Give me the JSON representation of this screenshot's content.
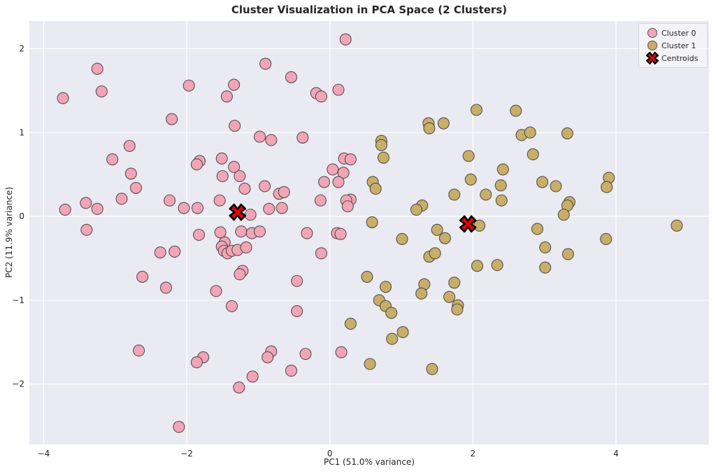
{
  "title": "Cluster Visualization in PCA Space (2 Clusters)",
  "axes": {
    "xlabel": "PC1 (51.0% variance)",
    "ylabel": "PC2 (11.9% variance)"
  },
  "legend": {
    "items": [
      {
        "label": "Cluster 0",
        "marker": "circle",
        "color": "#F2A5B6"
      },
      {
        "label": "Cluster 1",
        "marker": "circle",
        "color": "#C8AE68"
      },
      {
        "label": "Centroids",
        "marker": "X",
        "color": "#E8000B"
      }
    ]
  },
  "colors": {
    "plot_background": "#EAEAF2",
    "gridline": "#FFFFFF",
    "cluster0": "#F2A5B6",
    "cluster1": "#C8AE68",
    "centroid": "#E8000B",
    "marker_edge": "#3C3C3C",
    "text": "#262626"
  },
  "chart_data": {
    "type": "scatter",
    "title": "Cluster Visualization in PCA Space (2 Clusters)",
    "xlabel": "PC1 (51.0% variance)",
    "ylabel": "PC2 (11.9% variance)",
    "xlim": [
      -4.2,
      5.3
    ],
    "ylim": [
      -2.72,
      2.33
    ],
    "xticks": [
      -4,
      -2,
      0,
      2,
      4
    ],
    "yticks": [
      -2,
      -1,
      0,
      1,
      2
    ],
    "grid": true,
    "legend_position": "upper right",
    "series": [
      {
        "name": "Cluster 0",
        "marker": "circle",
        "color": "#F2A5B6",
        "points": [
          [
            -3.25,
            1.76
          ],
          [
            -3.73,
            1.41
          ],
          [
            -3.19,
            1.49
          ],
          [
            -2.21,
            1.16
          ],
          [
            -1.97,
            1.56
          ],
          [
            -1.34,
            1.57
          ],
          [
            -1.44,
            1.43
          ],
          [
            -1.33,
            1.08
          ],
          [
            -2.8,
            0.84
          ],
          [
            -3.04,
            0.68
          ],
          [
            -2.78,
            0.51
          ],
          [
            -2.71,
            0.34
          ],
          [
            -2.91,
            0.21
          ],
          [
            -3.7,
            0.08
          ],
          [
            -3.41,
            0.16
          ],
          [
            -3.25,
            0.09
          ],
          [
            -1.82,
            0.66
          ],
          [
            -1.86,
            0.62
          ],
          [
            -1.51,
            0.69
          ],
          [
            -1.34,
            0.59
          ],
          [
            -1.5,
            0.48
          ],
          [
            -1.26,
            0.48
          ],
          [
            -1.19,
            0.33
          ],
          [
            -1.54,
            0.19
          ],
          [
            -2.24,
            0.19
          ],
          [
            -2.04,
            0.1
          ],
          [
            -1.85,
            0.1
          ],
          [
            -3.4,
            -0.16
          ],
          [
            -1.11,
            0.02
          ],
          [
            0.22,
            2.11
          ],
          [
            -0.9,
            1.82
          ],
          [
            -0.54,
            1.66
          ],
          [
            -0.19,
            1.47
          ],
          [
            -0.12,
            1.43
          ],
          [
            0.12,
            1.51
          ],
          [
            -0.98,
            0.95
          ],
          [
            -0.82,
            0.91
          ],
          [
            -0.38,
            0.94
          ],
          [
            0.2,
            0.69
          ],
          [
            0.29,
            0.68
          ],
          [
            0.04,
            0.56
          ],
          [
            0.19,
            0.52
          ],
          [
            -0.08,
            0.41
          ],
          [
            0.12,
            0.41
          ],
          [
            -0.91,
            0.36
          ],
          [
            -0.71,
            0.27
          ],
          [
            -0.64,
            0.29
          ],
          [
            -0.13,
            0.19
          ],
          [
            -0.85,
            0.09
          ],
          [
            -0.67,
            0.1
          ],
          [
            0.29,
            0.2
          ],
          [
            0.23,
            0.19
          ],
          [
            0.25,
            0.12
          ],
          [
            -2.37,
            -0.43
          ],
          [
            -2.17,
            -0.42
          ],
          [
            -2.62,
            -0.72
          ],
          [
            -2.29,
            -0.85
          ],
          [
            -2.67,
            -1.6
          ],
          [
            -2.11,
            -2.51
          ],
          [
            -1.83,
            -0.22
          ],
          [
            -1.53,
            -0.19
          ],
          [
            -1.24,
            -0.18
          ],
          [
            -1.09,
            -0.2
          ],
          [
            -0.98,
            -0.18
          ],
          [
            -0.32,
            -0.2
          ],
          [
            0.1,
            -0.2
          ],
          [
            0.15,
            -0.21
          ],
          [
            -1.47,
            -0.31
          ],
          [
            -1.51,
            -0.36
          ],
          [
            -1.48,
            -0.41
          ],
          [
            -1.43,
            -0.44
          ],
          [
            -1.37,
            -0.41
          ],
          [
            -1.29,
            -0.4
          ],
          [
            -1.17,
            -0.37
          ],
          [
            -0.12,
            -0.44
          ],
          [
            -1.22,
            -0.65
          ],
          [
            -1.26,
            -0.69
          ],
          [
            -0.46,
            -0.77
          ],
          [
            -1.59,
            -0.89
          ],
          [
            -1.37,
            -1.07
          ],
          [
            -0.46,
            -1.13
          ],
          [
            -1.77,
            -1.68
          ],
          [
            -1.86,
            -1.74
          ],
          [
            -0.82,
            -1.61
          ],
          [
            -0.87,
            -1.68
          ],
          [
            -0.34,
            -1.64
          ],
          [
            0.16,
            -1.62
          ],
          [
            -0.54,
            -1.84
          ],
          [
            -1.08,
            -1.91
          ],
          [
            -1.27,
            -2.04
          ]
        ]
      },
      {
        "name": "Cluster 1",
        "marker": "circle",
        "color": "#C8AE68",
        "points": [
          [
            0.72,
            0.9
          ],
          [
            0.72,
            0.85
          ],
          [
            0.75,
            0.7
          ],
          [
            0.6,
            0.41
          ],
          [
            0.64,
            0.33
          ],
          [
            0.59,
            -0.07
          ],
          [
            2.05,
            1.27
          ],
          [
            1.59,
            1.11
          ],
          [
            1.38,
            1.11
          ],
          [
            1.39,
            1.05
          ],
          [
            2.6,
            1.26
          ],
          [
            2.68,
            0.97
          ],
          [
            2.8,
            1.0
          ],
          [
            3.32,
            0.99
          ],
          [
            2.84,
            0.74
          ],
          [
            1.94,
            0.72
          ],
          [
            2.42,
            0.56
          ],
          [
            1.97,
            0.44
          ],
          [
            2.39,
            0.37
          ],
          [
            2.97,
            0.41
          ],
          [
            3.16,
            0.36
          ],
          [
            1.74,
            0.26
          ],
          [
            2.18,
            0.26
          ],
          [
            2.4,
            0.19
          ],
          [
            1.29,
            0.13
          ],
          [
            1.21,
            0.08
          ],
          [
            3.35,
            0.17
          ],
          [
            3.32,
            0.13
          ],
          [
            3.27,
            0.02
          ],
          [
            2.09,
            -0.11
          ],
          [
            2.9,
            -0.15
          ],
          [
            3.9,
            0.46
          ],
          [
            3.87,
            0.35
          ],
          [
            4.85,
            -0.11
          ],
          [
            1.01,
            -0.27
          ],
          [
            1.61,
            -0.26
          ],
          [
            1.5,
            -0.16
          ],
          [
            1.39,
            -0.48
          ],
          [
            1.47,
            -0.44
          ],
          [
            2.06,
            -0.59
          ],
          [
            2.34,
            -0.58
          ],
          [
            0.52,
            -0.72
          ],
          [
            0.78,
            -0.84
          ],
          [
            1.32,
            -0.81
          ],
          [
            1.28,
            -0.92
          ],
          [
            1.74,
            -0.79
          ],
          [
            1.67,
            -0.96
          ],
          [
            0.69,
            -1.0
          ],
          [
            0.78,
            -1.07
          ],
          [
            0.86,
            -1.15
          ],
          [
            1.79,
            -1.06
          ],
          [
            1.78,
            -1.11
          ],
          [
            1.02,
            -1.38
          ],
          [
            0.87,
            -1.46
          ],
          [
            0.56,
            -1.76
          ],
          [
            1.43,
            -1.82
          ],
          [
            0.29,
            -1.28
          ],
          [
            3.86,
            -0.27
          ],
          [
            3.01,
            -0.37
          ],
          [
            3.33,
            -0.45
          ],
          [
            3.01,
            -0.61
          ]
        ]
      },
      {
        "name": "Centroids",
        "marker": "X",
        "color": "#E8000B",
        "points": [
          [
            -1.29,
            0.05
          ],
          [
            1.93,
            -0.09
          ]
        ]
      }
    ]
  }
}
